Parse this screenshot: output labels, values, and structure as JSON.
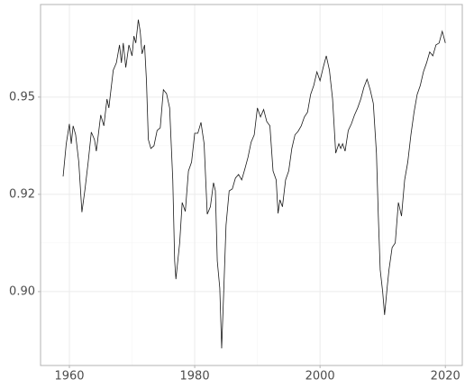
{
  "chart_data": {
    "type": "line",
    "x": [
      1959.0,
      1959.5,
      1960.0,
      1960.3,
      1960.6,
      1961.0,
      1961.5,
      1962.0,
      1962.5,
      1963.0,
      1963.5,
      1964.0,
      1964.3,
      1964.7,
      1965.0,
      1965.5,
      1966.0,
      1966.3,
      1966.6,
      1967.0,
      1967.5,
      1968.0,
      1968.3,
      1968.6,
      1969.0,
      1969.5,
      1970.0,
      1970.3,
      1970.6,
      1971.0,
      1971.3,
      1971.6,
      1972.0,
      1972.3,
      1972.6,
      1973.0,
      1973.5,
      1974.0,
      1974.5,
      1975.0,
      1975.5,
      1976.0,
      1976.5,
      1976.8,
      1977.0,
      1977.3,
      1977.6,
      1978.0,
      1978.5,
      1979.0,
      1979.5,
      1980.0,
      1980.5,
      1981.0,
      1981.5,
      1982.0,
      1982.5,
      1983.0,
      1983.3,
      1983.6,
      1984.0,
      1984.3,
      1984.6,
      1985.0,
      1985.5,
      1986.0,
      1986.5,
      1987.0,
      1987.5,
      1988.0,
      1988.5,
      1989.0,
      1989.5,
      1990.0,
      1990.5,
      1991.0,
      1991.5,
      1992.0,
      1992.5,
      1993.0,
      1993.3,
      1993.6,
      1994.0,
      1994.5,
      1995.0,
      1995.5,
      1996.0,
      1996.5,
      1997.0,
      1997.5,
      1998.0,
      1998.5,
      1999.0,
      1999.5,
      2000.0,
      2000.5,
      2001.0,
      2001.5,
      2002.0,
      2002.5,
      2003.0,
      2003.3,
      2003.6,
      2004.0,
      2004.5,
      2005.0,
      2005.5,
      2006.0,
      2006.5,
      2007.0,
      2007.5,
      2008.0,
      2008.5,
      2009.0,
      2009.3,
      2009.6,
      2010.0,
      2010.3,
      2010.7,
      2011.0,
      2011.5,
      2012.0,
      2012.5,
      2013.0,
      2013.5,
      2014.0,
      2014.5,
      2015.0,
      2015.5,
      2016.0,
      2016.5,
      2017.0,
      2017.5,
      2018.0,
      2018.5,
      2019.0,
      2019.5,
      2020.0
    ],
    "series": [
      {
        "color": "#1a1a1a",
        "values": [
          0.9296,
          0.938,
          0.9431,
          0.938,
          0.9426,
          0.9403,
          0.9333,
          0.9204,
          0.9264,
          0.9333,
          0.941,
          0.9391,
          0.9361,
          0.9414,
          0.9454,
          0.9426,
          0.9495,
          0.9472,
          0.9514,
          0.9569,
          0.9588,
          0.9634,
          0.9588,
          0.9639,
          0.9576,
          0.9634,
          0.9606,
          0.9657,
          0.9639,
          0.9699,
          0.9669,
          0.9611,
          0.9634,
          0.9542,
          0.9391,
          0.9368,
          0.9375,
          0.9414,
          0.9421,
          0.9519,
          0.9509,
          0.9472,
          0.9287,
          0.9079,
          0.9032,
          0.9079,
          0.9125,
          0.9229,
          0.9206,
          0.931,
          0.9333,
          0.9407,
          0.9407,
          0.9435,
          0.938,
          0.9199,
          0.9218,
          0.928,
          0.9259,
          0.9079,
          0.9009,
          0.8854,
          0.8986,
          0.9171,
          0.9259,
          0.9264,
          0.9292,
          0.9301,
          0.9287,
          0.9315,
          0.9345,
          0.9384,
          0.9403,
          0.9472,
          0.9449,
          0.9468,
          0.9437,
          0.9426,
          0.931,
          0.9287,
          0.9201,
          0.9236,
          0.9218,
          0.9287,
          0.931,
          0.9368,
          0.9403,
          0.9412,
          0.9426,
          0.9449,
          0.9461,
          0.9507,
          0.953,
          0.9565,
          0.9542,
          0.9576,
          0.9606,
          0.9569,
          0.9495,
          0.9356,
          0.938,
          0.9368,
          0.938,
          0.9361,
          0.9414,
          0.9431,
          0.9454,
          0.9472,
          0.9495,
          0.9525,
          0.9546,
          0.9519,
          0.9484,
          0.9356,
          0.9194,
          0.9056,
          0.8998,
          0.894,
          0.9009,
          0.9056,
          0.9113,
          0.9125,
          0.9229,
          0.9194,
          0.9287,
          0.9333,
          0.9403,
          0.9461,
          0.9507,
          0.953,
          0.9565,
          0.9588,
          0.9616,
          0.9606,
          0.9634,
          0.9639,
          0.9669,
          0.9639
        ]
      }
    ],
    "xlim": [
      1955.4,
      2022.7
    ],
    "ylim": [
      0.881,
      0.9738
    ],
    "xticks": [
      1960,
      1980,
      2000,
      2020
    ],
    "yticks": [
      {
        "value": 0.9,
        "label": "0.90"
      },
      {
        "value": 0.925,
        "label": "0.92"
      },
      0.95
    ],
    "grid": true
  }
}
